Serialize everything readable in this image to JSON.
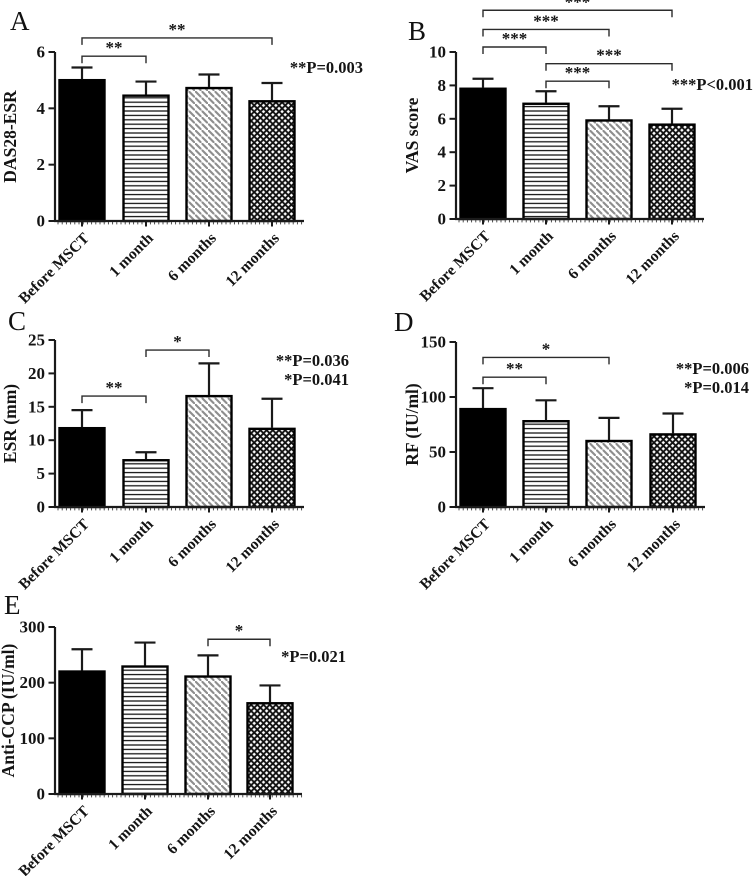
{
  "figure_background": "#ffffff",
  "colors": {
    "bar_solid": "#000000",
    "bar_outline": "#000000",
    "pattern_diag_gray": "#8e8e8e",
    "pattern_line_black": "#101010",
    "axis": "#1a1a1a",
    "bracket": "#2b2b2b",
    "text": "#141414"
  },
  "chart_data": [
    {
      "panel": "A",
      "type": "bar",
      "ylabel": "DAS28-ESR",
      "xlabel": "",
      "categories": [
        "Before MSCT",
        "1 month",
        "6 months",
        "12 months"
      ],
      "values": [
        5.0,
        4.45,
        4.72,
        4.25
      ],
      "errors_up": [
        0.45,
        0.5,
        0.48,
        0.65
      ],
      "ylim": [
        0,
        6
      ],
      "yticks": [
        0,
        2,
        4,
        6
      ],
      "bar_styles": [
        "solid",
        "hlines",
        "diag",
        "cross"
      ],
      "annotations": [
        "**P=0.003"
      ],
      "brackets": [
        {
          "from": 0,
          "to": 1,
          "label": "**",
          "y": 5.85
        },
        {
          "from": 0,
          "to": 3,
          "label": "**",
          "y": 6.5
        }
      ]
    },
    {
      "panel": "B",
      "type": "bar",
      "ylabel": "VAS score",
      "xlabel": "",
      "categories": [
        "Before MSCT",
        "1 month",
        "6 months",
        "12 months"
      ],
      "values": [
        7.8,
        6.9,
        5.9,
        5.65
      ],
      "errors_up": [
        0.6,
        0.75,
        0.85,
        0.95
      ],
      "ylim": [
        0,
        10
      ],
      "yticks": [
        0,
        2,
        4,
        6,
        8,
        10
      ],
      "bar_styles": [
        "solid",
        "hlines",
        "diag",
        "cross"
      ],
      "annotations": [
        "***P<0.001"
      ],
      "brackets": [
        {
          "from": 0,
          "to": 1,
          "label": "***",
          "y": 10.3
        },
        {
          "from": 0,
          "to": 2,
          "label": "***",
          "y": 11.35
        },
        {
          "from": 0,
          "to": 3,
          "label": "***",
          "y": 12.5
        },
        {
          "from": 1,
          "to": 2,
          "label": "***",
          "y": 8.25
        },
        {
          "from": 1,
          "to": 3,
          "label": "***",
          "y": 9.3
        }
      ]
    },
    {
      "panel": "C",
      "type": "bar",
      "ylabel": "ESR (mm)",
      "xlabel": "",
      "categories": [
        "Before MSCT",
        "1 month",
        "6 months",
        "12 months"
      ],
      "values": [
        11.8,
        7.0,
        16.6,
        11.7
      ],
      "errors_up": [
        2.7,
        1.2,
        4.9,
        4.5
      ],
      "ylim": [
        0,
        25
      ],
      "yticks": [
        0,
        5,
        10,
        15,
        20,
        25
      ],
      "bar_styles": [
        "solid",
        "hlines",
        "diag",
        "cross"
      ],
      "annotations": [
        "**P=0.036",
        "*P=0.041"
      ],
      "brackets": [
        {
          "from": 0,
          "to": 1,
          "label": "**",
          "y": 16.6
        },
        {
          "from": 1,
          "to": 2,
          "label": "*",
          "y": 23.5
        }
      ]
    },
    {
      "panel": "D",
      "type": "bar",
      "ylabel": "RF (IU/ml)",
      "xlabel": "",
      "categories": [
        "Before MSCT",
        "1 month",
        "6 months",
        "12 months"
      ],
      "values": [
        89,
        78,
        60,
        66
      ],
      "errors_up": [
        19,
        19,
        21,
        19
      ],
      "ylim": [
        0,
        150
      ],
      "yticks": [
        0,
        50,
        100,
        150
      ],
      "bar_styles": [
        "solid",
        "hlines",
        "diag",
        "cross"
      ],
      "annotations": [
        "**P=0.006",
        "*P=0.014"
      ],
      "brackets": [
        {
          "from": 0,
          "to": 1,
          "label": "**",
          "y": 118
        },
        {
          "from": 0,
          "to": 2,
          "label": "*",
          "y": 136
        }
      ]
    },
    {
      "panel": "E",
      "type": "bar",
      "ylabel": "Anti-CCP (IU/ml)",
      "xlabel": "",
      "categories": [
        "Before MSCT",
        "1 month",
        "6 months",
        "12 months"
      ],
      "values": [
        220,
        229,
        211,
        163
      ],
      "errors_up": [
        40,
        43,
        38,
        32
      ],
      "ylim": [
        0,
        300
      ],
      "yticks": [
        0,
        100,
        200,
        300
      ],
      "bar_styles": [
        "solid",
        "hlines",
        "diag",
        "cross"
      ],
      "annotations": [
        "*P=0.021"
      ],
      "brackets": [
        {
          "from": 2,
          "to": 3,
          "label": "*",
          "y": 278
        }
      ]
    }
  ]
}
